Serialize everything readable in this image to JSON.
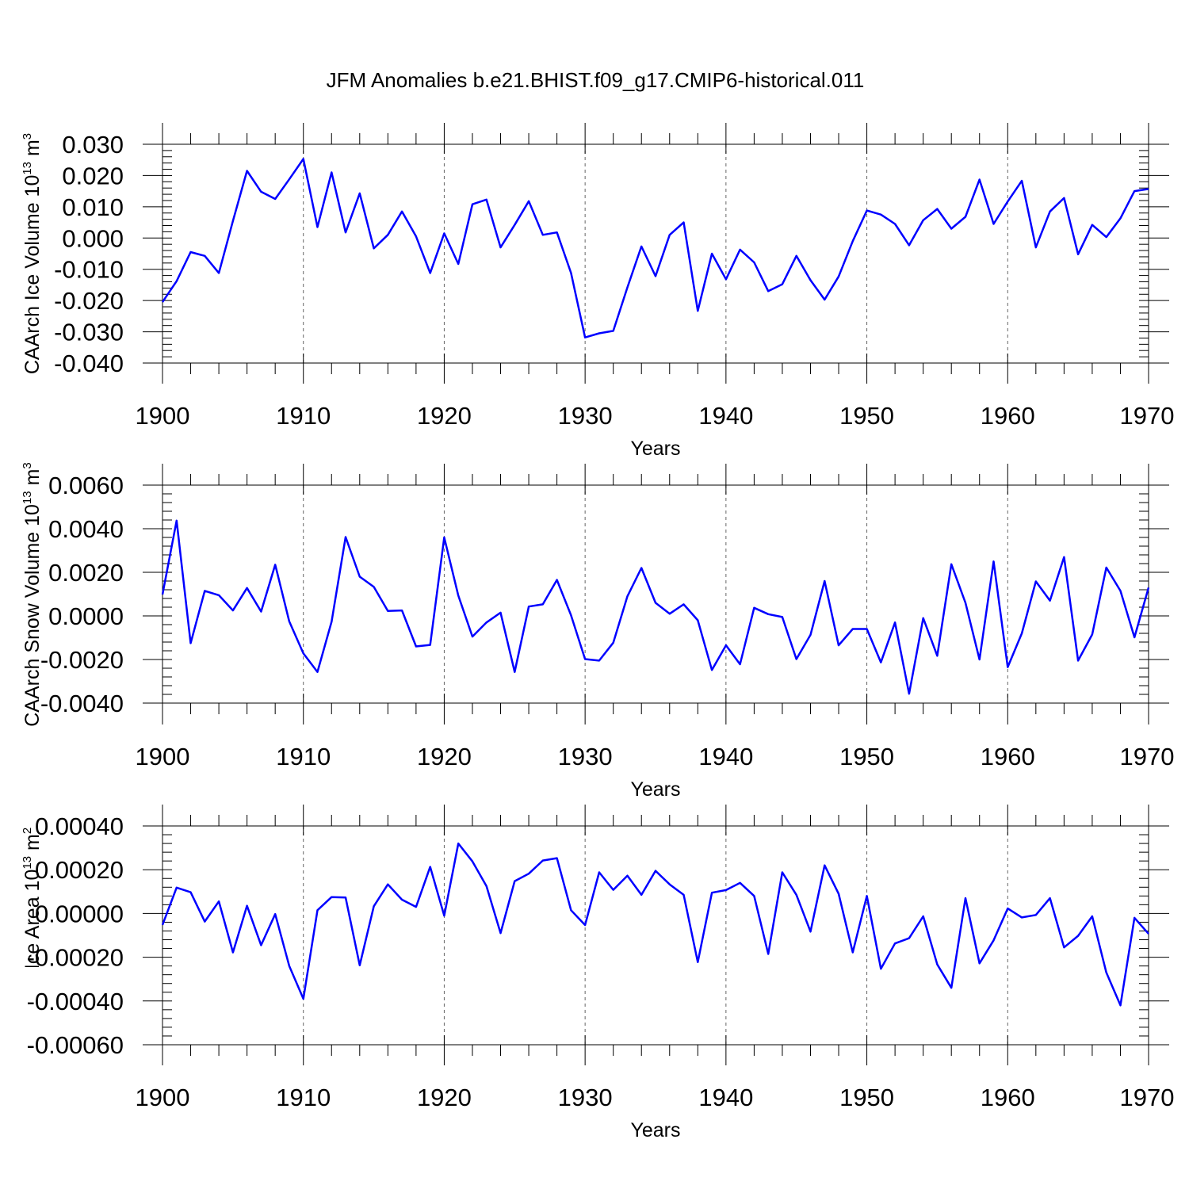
{
  "chart_data": [
    {
      "type": "line",
      "title": "JFM Anomalies b.e21.BHIST.f09_g17.CMIP6-historical.011",
      "xlabel": "Years",
      "ylabel": "CAArch Ice Volume 10",
      "ylabel_exp": "13",
      "ylabel_unit": "m",
      "ylabel_unit_exp": "3",
      "xlim": [
        1900,
        1970
      ],
      "ylim": [
        -0.04,
        0.03
      ],
      "xticks": [
        1900,
        1910,
        1920,
        1930,
        1940,
        1950,
        1960,
        1970
      ],
      "xtick_labels": [
        "1900",
        "1910",
        "1920",
        "1930",
        "1940",
        "1950",
        "1960",
        "1970"
      ],
      "yticks": [
        0.03,
        0.02,
        0.01,
        0.0,
        -0.01,
        -0.02,
        -0.03,
        -0.04
      ],
      "ytick_labels": [
        "0.030",
        "0.020",
        "0.010",
        "0.000",
        "-0.010",
        "-0.020",
        "-0.030",
        "-0.040"
      ],
      "y_minor_step": 0.002,
      "grid": "vertical dashed at labeled years",
      "series": [
        {
          "name": "CAArch Ice Volume",
          "color": "#0000ff",
          "x_start": 1900,
          "values": [
            -0.0205,
            -0.0138,
            -0.0045,
            -0.0057,
            -0.0112,
            0.0055,
            0.0215,
            0.0148,
            0.0125,
            0.0188,
            0.0253,
            0.0035,
            0.021,
            0.0018,
            0.0143,
            -0.0033,
            0.001,
            0.0085,
            0.0005,
            -0.0112,
            0.0015,
            -0.0083,
            0.0108,
            0.0123,
            -0.003,
            0.0042,
            0.0118,
            0.001,
            0.0018,
            -0.0112,
            -0.0318,
            -0.0305,
            -0.0297,
            -0.0158,
            -0.0027,
            -0.0122,
            0.001,
            0.005,
            -0.0233,
            -0.005,
            -0.0132,
            -0.0037,
            -0.0078,
            -0.017,
            -0.0148,
            -0.0057,
            -0.0135,
            -0.0197,
            -0.0123,
            -0.001,
            0.0088,
            0.0075,
            0.0045,
            -0.0023,
            0.0057,
            0.0093,
            0.003,
            0.0068,
            0.0187,
            0.0045,
            0.0117,
            0.0183,
            -0.003,
            0.0085,
            0.0128,
            -0.0052,
            0.0042,
            0.0003,
            0.0063,
            0.015,
            0.0157
          ]
        }
      ]
    },
    {
      "type": "line",
      "xlabel": "Years",
      "ylabel": "CAArch Snow Volume 10",
      "ylabel_exp": "13",
      "ylabel_unit": "m",
      "ylabel_unit_exp": "3",
      "xlim": [
        1900,
        1970
      ],
      "ylim": [
        -0.004,
        0.006
      ],
      "xticks": [
        1900,
        1910,
        1920,
        1930,
        1940,
        1950,
        1960,
        1970
      ],
      "xtick_labels": [
        "1900",
        "1910",
        "1920",
        "1930",
        "1940",
        "1950",
        "1960",
        "1970"
      ],
      "yticks": [
        0.006,
        0.004,
        0.002,
        0.0,
        -0.002,
        -0.004
      ],
      "ytick_labels": [
        "0.0060",
        "0.0040",
        "0.0020",
        "0.0000",
        "-0.0020",
        "-0.0040"
      ],
      "y_minor_step": 0.0004,
      "grid": "vertical dashed at labeled years",
      "series": [
        {
          "name": "CAArch Snow Volume",
          "color": "#0000ff",
          "x_start": 1900,
          "values": [
            0.00098,
            0.00437,
            -0.00125,
            0.00115,
            0.00095,
            0.00025,
            0.00128,
            0.0002,
            0.00235,
            -0.00025,
            -0.00172,
            -0.00257,
            -0.00027,
            0.00362,
            0.0018,
            0.00133,
            0.00023,
            0.00025,
            -0.0014,
            -0.00133,
            0.0036,
            0.00093,
            -0.00095,
            -0.0003,
            0.00015,
            -0.00257,
            0.00043,
            0.00053,
            0.00165,
            3e-05,
            -0.00198,
            -0.00205,
            -0.00123,
            0.0009,
            0.0022,
            0.0006,
            0.0001,
            0.00053,
            -0.0002,
            -0.00248,
            -0.00135,
            -0.00222,
            0.00037,
            8e-05,
            -5e-05,
            -0.00198,
            -0.00087,
            0.0016,
            -0.00135,
            -0.0006,
            -0.0006,
            -0.00213,
            -0.0003,
            -0.00357,
            -0.0001,
            -0.00183,
            0.00237,
            0.0006,
            -0.002,
            0.0025,
            -0.00235,
            -0.0008,
            0.00158,
            0.0007,
            0.0027,
            -0.00205,
            -0.00085,
            0.00222,
            0.00115,
            -0.00098,
            0.0013
          ]
        }
      ]
    },
    {
      "type": "line",
      "xlabel": "Years",
      "ylabel": "CAArch Ice Area 10",
      "ylabel_exp": "13",
      "ylabel_unit": "m",
      "ylabel_unit_exp": "2",
      "xlim": [
        1900,
        1970
      ],
      "ylim": [
        -0.0006,
        0.0004
      ],
      "xticks": [
        1900,
        1910,
        1920,
        1930,
        1940,
        1950,
        1960,
        1970
      ],
      "xtick_labels": [
        "1900",
        "1910",
        "1920",
        "1930",
        "1940",
        "1950",
        "1960",
        "1970"
      ],
      "yticks": [
        0.0004,
        0.0002,
        0.0,
        -0.0002,
        -0.0004,
        -0.0006
      ],
      "ytick_labels": [
        "0.00040",
        "0.00020",
        "0.00000",
        "-0.00020",
        "-0.00040",
        "-0.00060"
      ],
      "y_minor_step": 4e-05,
      "grid": "vertical dashed at labeled years",
      "series": [
        {
          "name": "CAArch Ice Area",
          "color": "#0000ff",
          "x_start": 1900,
          "values": [
            -5.2e-05,
            0.000118,
            9.7e-05,
            -3.7e-05,
            5.5e-05,
            -0.000178,
            3.5e-05,
            -0.000145,
            -3e-06,
            -0.00024,
            -0.00039,
            1.5e-05,
            7.5e-05,
            7.3e-05,
            -0.000237,
            3.3e-05,
            0.000133,
            6.3e-05,
            3e-05,
            0.000213,
            -1e-05,
            0.00032,
            0.000238,
            0.000125,
            -9e-05,
            0.000148,
            0.000182,
            0.000242,
            0.000253,
            1.5e-05,
            -5.3e-05,
            0.000188,
            0.000108,
            0.000173,
            8.5e-05,
            0.000195,
            0.000133,
            8.5e-05,
            -0.000222,
            9.5e-05,
            0.000107,
            0.00014,
            8e-05,
            -0.000185,
            0.000188,
            8.5e-05,
            -8.3e-05,
            0.00022,
            9e-05,
            -0.000178,
            8e-05,
            -0.000253,
            -0.000137,
            -0.000113,
            -1.3e-05,
            -0.000233,
            -0.00034,
            7e-05,
            -0.000228,
            -0.000123,
            2.3e-05,
            -1.8e-05,
            -7e-06,
            7e-05,
            -0.000155,
            -0.000102,
            -1.3e-05,
            -0.00027,
            -0.00042,
            -2e-05,
            -9.3e-05
          ]
        }
      ]
    }
  ]
}
